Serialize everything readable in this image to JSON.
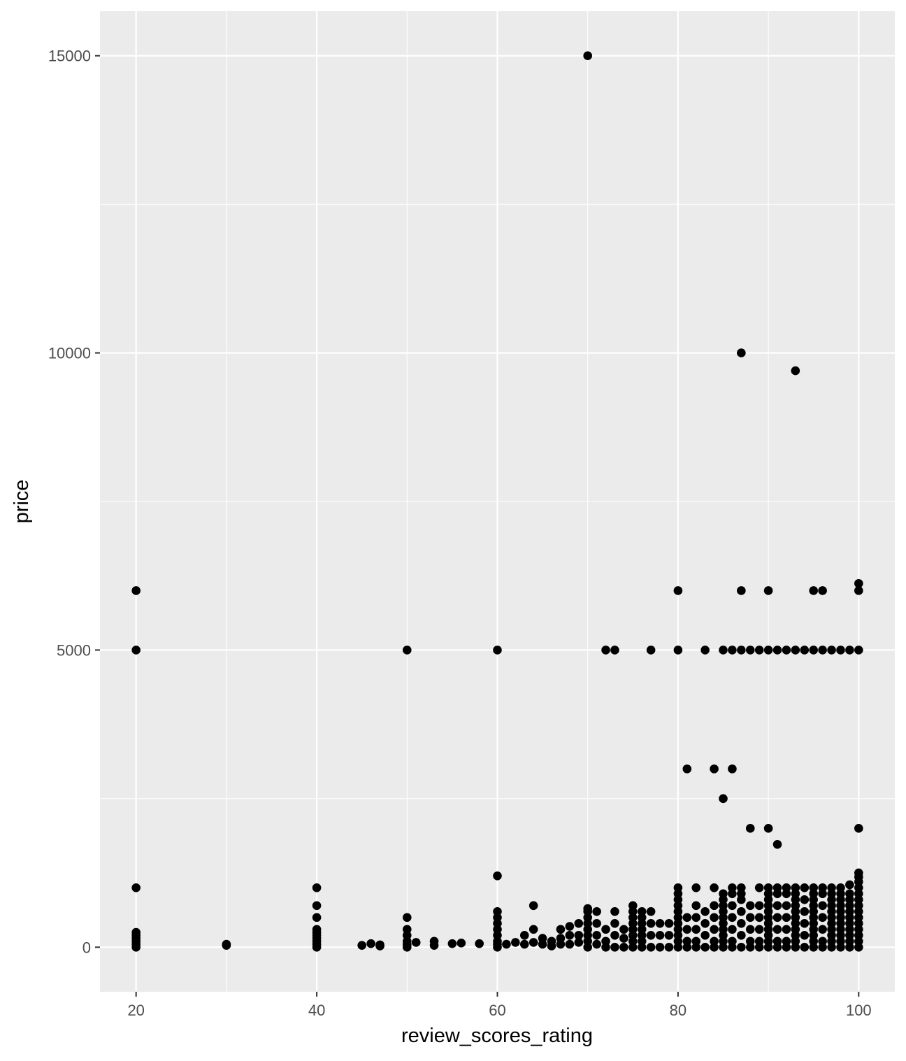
{
  "chart_data": {
    "type": "scatter",
    "title": "",
    "xlabel": "review_scores_rating",
    "ylabel": "price",
    "xlim": [
      16.0,
      104.0
    ],
    "ylim": [
      -750,
      15750
    ],
    "x_ticks": [
      20,
      40,
      60,
      80,
      100
    ],
    "y_ticks": [
      0,
      5000,
      10000,
      15000
    ],
    "x_tick_labels": [
      "20",
      "40",
      "60",
      "80",
      "100"
    ],
    "y_tick_labels": [
      "0",
      "5000",
      "10000",
      "15000"
    ],
    "grid": true,
    "legend": "none",
    "colors": {
      "panel": "#ebebeb",
      "grid": "#ffffff",
      "point": "#000000",
      "tick": "#333333"
    },
    "series": [
      {
        "points": [
          [
            70,
            15000
          ],
          [
            87,
            10000
          ],
          [
            93,
            9700
          ],
          [
            20,
            6000
          ],
          [
            80,
            6000
          ],
          [
            87,
            6000
          ],
          [
            90,
            6000
          ],
          [
            95,
            6000
          ],
          [
            96,
            6000
          ],
          [
            100,
            6000
          ],
          [
            100,
            6120
          ],
          [
            20,
            5000
          ],
          [
            50,
            5000
          ],
          [
            60,
            5000
          ],
          [
            72,
            5000
          ],
          [
            73,
            5000
          ],
          [
            77,
            5000
          ],
          [
            80,
            5000
          ],
          [
            83,
            5000
          ],
          [
            85,
            5000
          ],
          [
            86,
            5000
          ],
          [
            87,
            5000
          ],
          [
            88,
            5000
          ],
          [
            89,
            5000
          ],
          [
            90,
            5000
          ],
          [
            91,
            5000
          ],
          [
            92,
            5000
          ],
          [
            93,
            5000
          ],
          [
            94,
            5000
          ],
          [
            95,
            5000
          ],
          [
            96,
            5000
          ],
          [
            97,
            5000
          ],
          [
            98,
            5000
          ],
          [
            99,
            5000
          ],
          [
            100,
            5000
          ],
          [
            81,
            3000
          ],
          [
            84,
            3000
          ],
          [
            86,
            3000
          ],
          [
            85,
            2500
          ],
          [
            88,
            2000
          ],
          [
            90,
            2000
          ],
          [
            100,
            2000
          ],
          [
            91,
            1730
          ],
          [
            60,
            1200
          ],
          [
            100,
            1250
          ],
          [
            100,
            1180
          ],
          [
            20,
            1000
          ],
          [
            40,
            1000
          ],
          [
            82,
            1000
          ],
          [
            84,
            1000
          ],
          [
            86,
            1000
          ],
          [
            87,
            1000
          ],
          [
            89,
            1000
          ],
          [
            90,
            1000
          ],
          [
            91,
            1000
          ],
          [
            92,
            1000
          ],
          [
            93,
            1000
          ],
          [
            94,
            1000
          ],
          [
            95,
            1000
          ],
          [
            96,
            1000
          ],
          [
            97,
            1000
          ],
          [
            98,
            1000
          ],
          [
            99,
            1050
          ],
          [
            100,
            1100
          ],
          [
            20,
            250
          ],
          [
            20,
            200
          ],
          [
            20,
            150
          ],
          [
            20,
            100
          ],
          [
            20,
            50
          ],
          [
            20,
            0
          ],
          [
            30,
            30
          ],
          [
            30,
            50
          ],
          [
            40,
            700
          ],
          [
            40,
            500
          ],
          [
            40,
            300
          ],
          [
            40,
            250
          ],
          [
            40,
            200
          ],
          [
            40,
            150
          ],
          [
            40,
            100
          ],
          [
            40,
            50
          ],
          [
            40,
            0
          ],
          [
            45,
            30
          ],
          [
            46,
            60
          ],
          [
            47,
            20
          ],
          [
            47,
            40
          ],
          [
            50,
            500
          ],
          [
            50,
            300
          ],
          [
            50,
            200
          ],
          [
            50,
            100
          ],
          [
            50,
            50
          ],
          [
            50,
            0
          ],
          [
            51,
            80
          ],
          [
            53,
            100
          ],
          [
            53,
            30
          ],
          [
            55,
            60
          ],
          [
            56,
            70
          ],
          [
            58,
            60
          ],
          [
            60,
            600
          ],
          [
            60,
            500
          ],
          [
            60,
            400
          ],
          [
            60,
            300
          ],
          [
            60,
            200
          ],
          [
            60,
            100
          ],
          [
            60,
            50
          ],
          [
            60,
            0
          ],
          [
            61,
            50
          ],
          [
            62,
            80
          ],
          [
            63,
            200
          ],
          [
            63,
            50
          ],
          [
            64,
            700
          ],
          [
            64,
            300
          ],
          [
            64,
            80
          ],
          [
            65,
            150
          ],
          [
            65,
            50
          ],
          [
            66,
            100
          ],
          [
            66,
            20
          ],
          [
            67,
            300
          ],
          [
            67,
            150
          ],
          [
            67,
            50
          ],
          [
            68,
            350
          ],
          [
            68,
            200
          ],
          [
            68,
            50
          ],
          [
            69,
            400
          ],
          [
            69,
            200
          ],
          [
            69,
            80
          ],
          [
            70,
            650
          ],
          [
            70,
            600
          ],
          [
            70,
            500
          ],
          [
            70,
            400
          ],
          [
            70,
            300
          ],
          [
            70,
            200
          ],
          [
            70,
            100
          ],
          [
            70,
            0
          ],
          [
            71,
            600
          ],
          [
            71,
            400
          ],
          [
            71,
            200
          ],
          [
            71,
            50
          ],
          [
            72,
            300
          ],
          [
            72,
            100
          ],
          [
            72,
            0
          ],
          [
            73,
            600
          ],
          [
            73,
            400
          ],
          [
            73,
            200
          ],
          [
            73,
            0
          ],
          [
            74,
            300
          ],
          [
            74,
            150
          ],
          [
            74,
            0
          ],
          [
            75,
            700
          ],
          [
            75,
            600
          ],
          [
            75,
            500
          ],
          [
            75,
            400
          ],
          [
            75,
            300
          ],
          [
            75,
            200
          ],
          [
            75,
            100
          ],
          [
            75,
            0
          ],
          [
            76,
            600
          ],
          [
            76,
            500
          ],
          [
            76,
            400
          ],
          [
            76,
            300
          ],
          [
            76,
            200
          ],
          [
            76,
            100
          ],
          [
            76,
            0
          ],
          [
            77,
            600
          ],
          [
            77,
            400
          ],
          [
            77,
            200
          ],
          [
            77,
            0
          ],
          [
            78,
            400
          ],
          [
            78,
            200
          ],
          [
            78,
            0
          ],
          [
            79,
            400
          ],
          [
            79,
            200
          ],
          [
            79,
            0
          ],
          [
            80,
            1000
          ],
          [
            80,
            900
          ],
          [
            80,
            800
          ],
          [
            80,
            700
          ],
          [
            80,
            600
          ],
          [
            80,
            500
          ],
          [
            80,
            400
          ],
          [
            80,
            300
          ],
          [
            80,
            200
          ],
          [
            80,
            100
          ],
          [
            80,
            0
          ],
          [
            81,
            500
          ],
          [
            81,
            300
          ],
          [
            81,
            100
          ],
          [
            81,
            0
          ],
          [
            82,
            700
          ],
          [
            82,
            500
          ],
          [
            82,
            300
          ],
          [
            82,
            100
          ],
          [
            82,
            0
          ],
          [
            83,
            600
          ],
          [
            83,
            400
          ],
          [
            83,
            200
          ],
          [
            83,
            0
          ],
          [
            84,
            700
          ],
          [
            84,
            500
          ],
          [
            84,
            300
          ],
          [
            84,
            100
          ],
          [
            84,
            0
          ],
          [
            85,
            900
          ],
          [
            85,
            800
          ],
          [
            85,
            700
          ],
          [
            85,
            600
          ],
          [
            85,
            500
          ],
          [
            85,
            400
          ],
          [
            85,
            300
          ],
          [
            85,
            200
          ],
          [
            85,
            100
          ],
          [
            85,
            0
          ],
          [
            86,
            900
          ],
          [
            86,
            700
          ],
          [
            86,
            500
          ],
          [
            86,
            300
          ],
          [
            86,
            100
          ],
          [
            86,
            0
          ],
          [
            87,
            900
          ],
          [
            87,
            800
          ],
          [
            87,
            600
          ],
          [
            87,
            400
          ],
          [
            87,
            200
          ],
          [
            87,
            0
          ],
          [
            88,
            700
          ],
          [
            88,
            500
          ],
          [
            88,
            300
          ],
          [
            88,
            100
          ],
          [
            88,
            0
          ],
          [
            89,
            700
          ],
          [
            89,
            500
          ],
          [
            89,
            300
          ],
          [
            89,
            100
          ],
          [
            89,
            0
          ],
          [
            90,
            900
          ],
          [
            90,
            800
          ],
          [
            90,
            700
          ],
          [
            90,
            600
          ],
          [
            90,
            500
          ],
          [
            90,
            400
          ],
          [
            90,
            300
          ],
          [
            90,
            200
          ],
          [
            90,
            100
          ],
          [
            90,
            0
          ],
          [
            91,
            900
          ],
          [
            91,
            700
          ],
          [
            91,
            500
          ],
          [
            91,
            300
          ],
          [
            91,
            100
          ],
          [
            91,
            0
          ],
          [
            92,
            900
          ],
          [
            92,
            700
          ],
          [
            92,
            500
          ],
          [
            92,
            300
          ],
          [
            92,
            100
          ],
          [
            92,
            0
          ],
          [
            93,
            900
          ],
          [
            93,
            800
          ],
          [
            93,
            700
          ],
          [
            93,
            600
          ],
          [
            93,
            500
          ],
          [
            93,
            400
          ],
          [
            93,
            300
          ],
          [
            93,
            200
          ],
          [
            93,
            100
          ],
          [
            93,
            0
          ],
          [
            94,
            800
          ],
          [
            94,
            600
          ],
          [
            94,
            400
          ],
          [
            94,
            200
          ],
          [
            94,
            0
          ],
          [
            95,
            900
          ],
          [
            95,
            800
          ],
          [
            95,
            700
          ],
          [
            95,
            600
          ],
          [
            95,
            500
          ],
          [
            95,
            400
          ],
          [
            95,
            300
          ],
          [
            95,
            200
          ],
          [
            95,
            100
          ],
          [
            95,
            0
          ],
          [
            96,
            900
          ],
          [
            96,
            700
          ],
          [
            96,
            500
          ],
          [
            96,
            300
          ],
          [
            96,
            100
          ],
          [
            96,
            0
          ],
          [
            97,
            900
          ],
          [
            97,
            800
          ],
          [
            97,
            700
          ],
          [
            97,
            600
          ],
          [
            97,
            500
          ],
          [
            97,
            400
          ],
          [
            97,
            300
          ],
          [
            97,
            200
          ],
          [
            97,
            100
          ],
          [
            97,
            0
          ],
          [
            98,
            900
          ],
          [
            98,
            800
          ],
          [
            98,
            700
          ],
          [
            98,
            600
          ],
          [
            98,
            500
          ],
          [
            98,
            400
          ],
          [
            98,
            300
          ],
          [
            98,
            200
          ],
          [
            98,
            100
          ],
          [
            98,
            0
          ],
          [
            99,
            900
          ],
          [
            99,
            800
          ],
          [
            99,
            700
          ],
          [
            99,
            600
          ],
          [
            99,
            500
          ],
          [
            99,
            400
          ],
          [
            99,
            300
          ],
          [
            99,
            200
          ],
          [
            99,
            100
          ],
          [
            99,
            0
          ],
          [
            100,
            1000
          ],
          [
            100,
            900
          ],
          [
            100,
            800
          ],
          [
            100,
            700
          ],
          [
            100,
            600
          ],
          [
            100,
            500
          ],
          [
            100,
            400
          ],
          [
            100,
            300
          ],
          [
            100,
            200
          ],
          [
            100,
            100
          ],
          [
            100,
            0
          ]
        ]
      }
    ]
  }
}
